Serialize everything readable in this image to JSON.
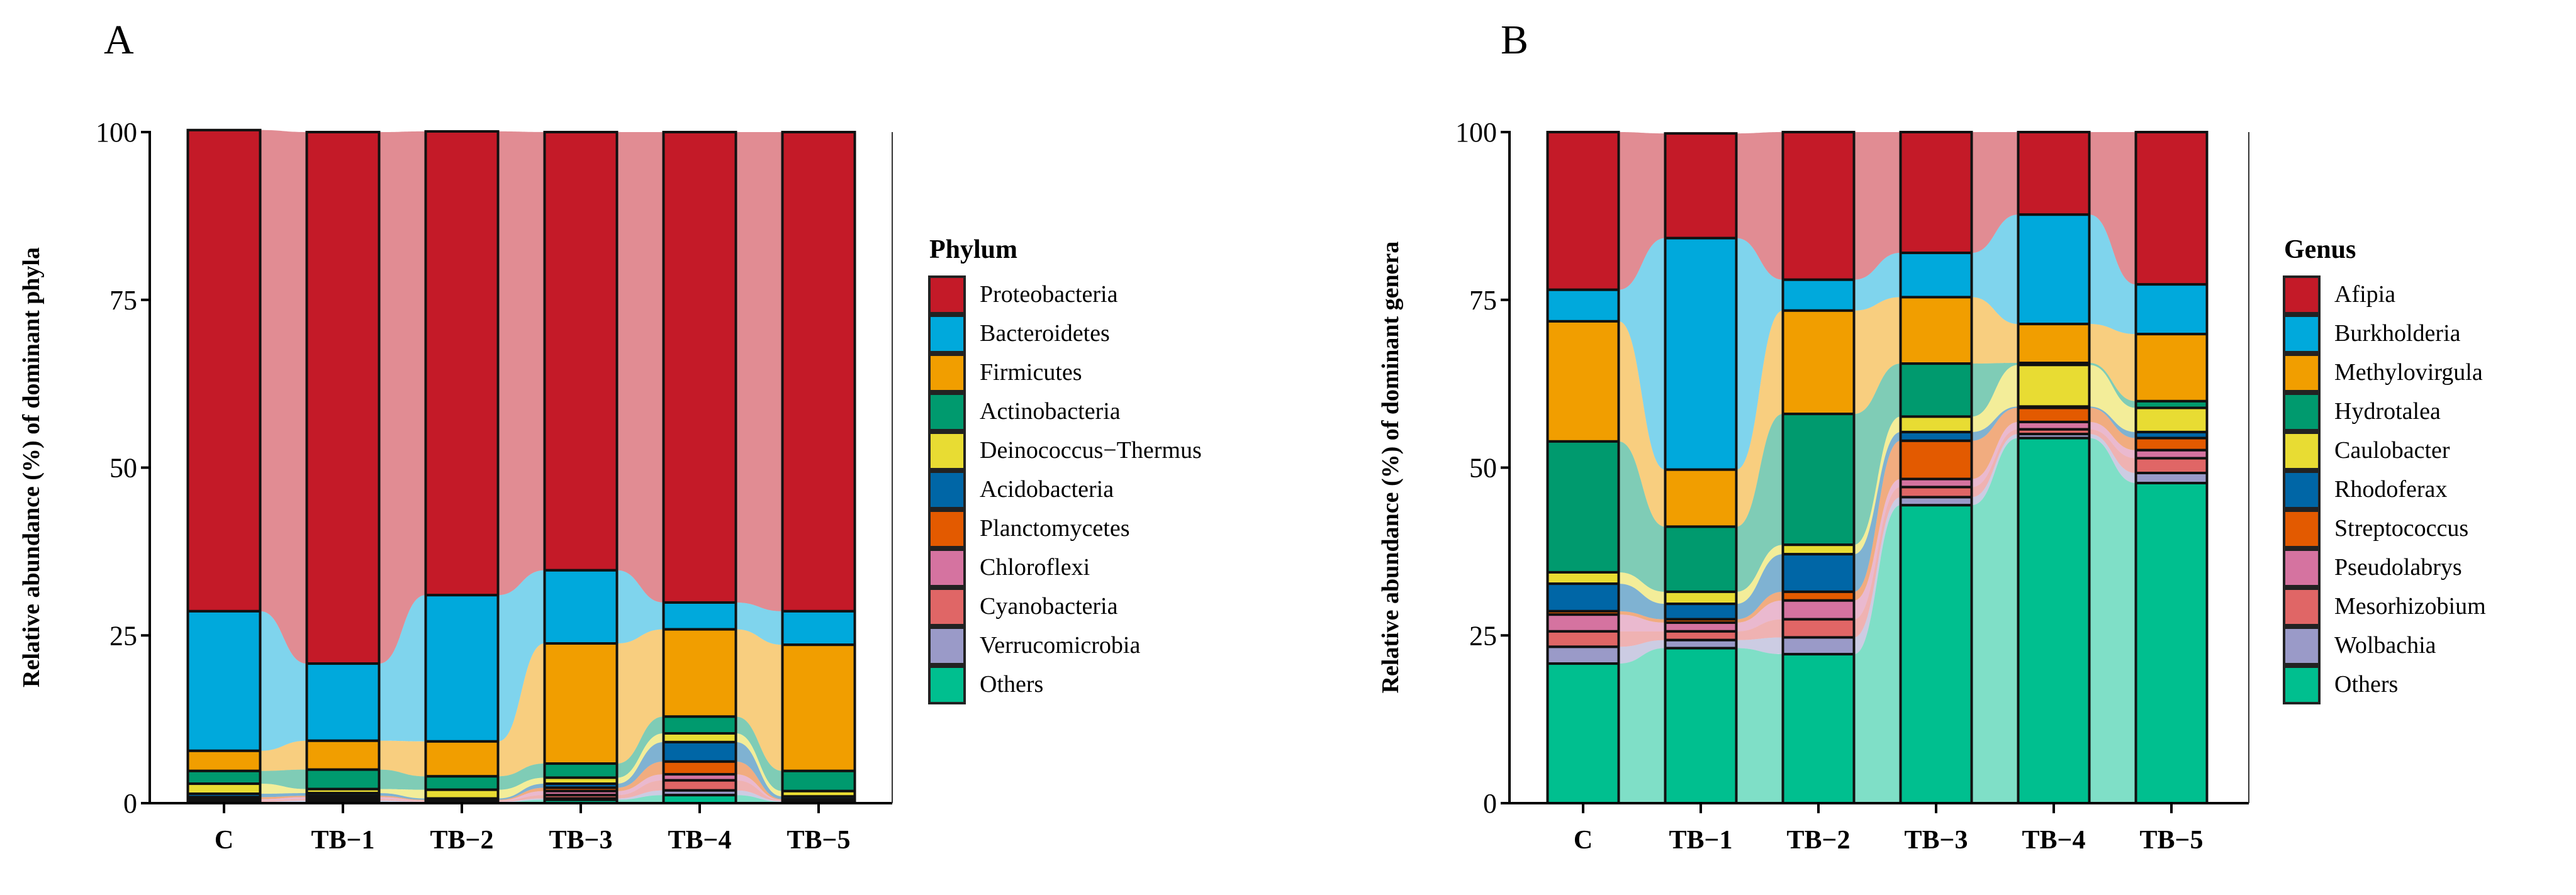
{
  "chart_data": [
    {
      "type": "bar",
      "panel_label": "A",
      "ylabel": "Relative abundance (%) of dominant phyla",
      "ylim": [
        0,
        100
      ],
      "yticks": [
        "0",
        "25",
        "50",
        "75",
        "100"
      ],
      "categories": [
        "C",
        "TB−1",
        "TB−2",
        "TB−3",
        "TB−4",
        "TB−5"
      ],
      "legend_title": "Phylum",
      "legend_position": "right",
      "stacked": true,
      "flows_between_bars": true,
      "series": [
        {
          "name": "Proteobacteria",
          "color": "#c41a28",
          "values": [
            71.7,
            79.2,
            69.1,
            65.3,
            70.1,
            71.4
          ]
        },
        {
          "name": "Bacteroidetes",
          "color": "#00a9dc",
          "values": [
            20.8,
            11.5,
            21.8,
            10.9,
            4.0,
            5.0
          ]
        },
        {
          "name": "Firmicutes",
          "color": "#f19e00",
          "values": [
            3.0,
            4.3,
            5.2,
            17.9,
            13.0,
            18.8
          ]
        },
        {
          "name": "Actinobacteria",
          "color": "#009a6e",
          "values": [
            1.9,
            2.9,
            2.0,
            2.1,
            2.5,
            3.0
          ]
        },
        {
          "name": "Deinococcus−Thermus",
          "color": "#e8dc33",
          "values": [
            1.5,
            0.6,
            1.3,
            0.9,
            1.3,
            0.8
          ]
        },
        {
          "name": "Acidobacteria",
          "color": "#0066a6",
          "values": [
            0.5,
            0.4,
            0.2,
            0.6,
            2.9,
            0.4
          ]
        },
        {
          "name": "Planctomycetes",
          "color": "#e35a00",
          "values": [
            0.3,
            0.2,
            0.1,
            0.5,
            1.9,
            0.1
          ]
        },
        {
          "name": "Chloroflexi",
          "color": "#d573a0",
          "values": [
            0.2,
            0.3,
            0.1,
            0.6,
            0.9,
            0.1
          ]
        },
        {
          "name": "Cyanobacteria",
          "color": "#e06666",
          "values": [
            0.2,
            0.2,
            0.1,
            0.5,
            1.5,
            0.1
          ]
        },
        {
          "name": "Verrucomicrobia",
          "color": "#9a9ac8",
          "values": [
            0.1,
            0.2,
            0.1,
            0.2,
            0.7,
            0.1
          ]
        },
        {
          "name": "Others",
          "color": "#00bf8f",
          "values": [
            0.1,
            0.2,
            0.1,
            0.5,
            1.2,
            0.2
          ]
        }
      ]
    },
    {
      "type": "bar",
      "panel_label": "B",
      "ylabel": "Relative abundance (%) of dominant genera",
      "ylim": [
        0,
        100
      ],
      "yticks": [
        "0",
        "25",
        "50",
        "75",
        "100"
      ],
      "categories": [
        "C",
        "TB−1",
        "TB−2",
        "TB−3",
        "TB−4",
        "TB−5"
      ],
      "legend_title": "Genus",
      "legend_position": "right",
      "stacked": true,
      "flows_between_bars": true,
      "series": [
        {
          "name": "Afipia",
          "color": "#c41a28",
          "values": [
            23.5,
            15.6,
            22.0,
            18.0,
            12.3,
            22.7
          ]
        },
        {
          "name": "Burkholderia",
          "color": "#00a9dc",
          "values": [
            4.7,
            34.5,
            4.6,
            6.6,
            16.3,
            7.4
          ]
        },
        {
          "name": "Methylovirgula",
          "color": "#f19e00",
          "values": [
            17.9,
            8.5,
            15.4,
            9.9,
            5.8,
            10.0
          ]
        },
        {
          "name": "Hydrotalea",
          "color": "#009a6e",
          "values": [
            19.5,
            9.7,
            19.5,
            7.9,
            0.3,
            1.0
          ]
        },
        {
          "name": "Caulobacter",
          "color": "#e8dc33",
          "values": [
            1.7,
            1.8,
            1.4,
            2.3,
            6.2,
            3.6
          ]
        },
        {
          "name": "Rhodoferax",
          "color": "#0066a6",
          "values": [
            4.1,
            2.3,
            5.6,
            1.3,
            0.2,
            0.9
          ]
        },
        {
          "name": "Streptococcus",
          "color": "#e35a00",
          "values": [
            0.5,
            0.5,
            1.3,
            5.7,
            2.1,
            1.8
          ]
        },
        {
          "name": "Pseudolabrys",
          "color": "#d573a0",
          "values": [
            2.5,
            1.3,
            2.8,
            1.2,
            1.1,
            1.2
          ]
        },
        {
          "name": "Mesorhizobium",
          "color": "#e06666",
          "values": [
            2.3,
            1.3,
            2.7,
            1.5,
            0.7,
            2.2
          ]
        },
        {
          "name": "Wolbachia",
          "color": "#9a9ac8",
          "values": [
            2.5,
            1.2,
            2.5,
            1.2,
            0.6,
            1.5
          ]
        },
        {
          "name": "Others",
          "color": "#00bf8f",
          "values": [
            20.8,
            23.1,
            22.2,
            44.4,
            54.4,
            47.7
          ]
        }
      ]
    }
  ]
}
